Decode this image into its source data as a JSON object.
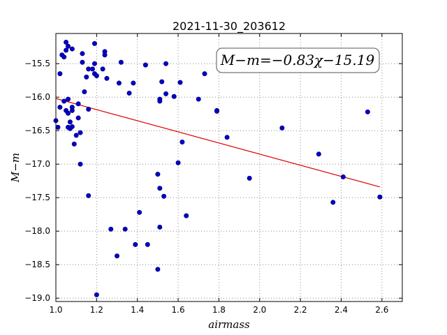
{
  "chart_data": {
    "type": "scatter",
    "title": "2021-11-30_203612",
    "xlabel": "airmass",
    "ylabel": "M−m",
    "xlim": [
      1.0,
      2.7
    ],
    "ylim": [
      -19.05,
      -15.05
    ],
    "x_ticks": [
      1.0,
      1.2,
      1.4,
      1.6,
      1.8,
      2.0,
      2.2,
      2.4,
      2.6
    ],
    "x_tick_labels": [
      "1.0",
      "1.2",
      "1.4",
      "1.6",
      "1.8",
      "2.0",
      "2.2",
      "2.4",
      "2.6"
    ],
    "y_ticks": [
      -15.5,
      -16.0,
      -16.5,
      -17.0,
      -17.5,
      -18.0,
      -18.5,
      -19.0
    ],
    "y_tick_labels": [
      "−15.5",
      "−16.0",
      "−16.5",
      "−17.0",
      "−17.5",
      "−18.0",
      "−18.5",
      "−19.0"
    ],
    "grid": true,
    "annotation": "M−m=−0.83χ−15.19",
    "annotation_position": "top-right",
    "marker_color": "#0000cc",
    "line_color": "#dd0000",
    "fit": {
      "slope": -0.83,
      "intercept": -15.19,
      "x_range": [
        1.0,
        2.59
      ]
    },
    "points": [
      [
        1.0,
        -16.35
      ],
      [
        1.01,
        -16.45
      ],
      [
        1.02,
        -15.65
      ],
      [
        1.02,
        -16.15
      ],
      [
        1.03,
        -15.37
      ],
      [
        1.04,
        -15.4
      ],
      [
        1.04,
        -16.06
      ],
      [
        1.05,
        -15.18
      ],
      [
        1.05,
        -15.3
      ],
      [
        1.05,
        -16.2
      ],
      [
        1.06,
        -15.24
      ],
      [
        1.06,
        -16.03
      ],
      [
        1.06,
        -16.24
      ],
      [
        1.06,
        -16.45
      ],
      [
        1.07,
        -16.37
      ],
      [
        1.07,
        -16.47
      ],
      [
        1.08,
        -15.28
      ],
      [
        1.08,
        -16.15
      ],
      [
        1.08,
        -16.2
      ],
      [
        1.08,
        -16.44
      ],
      [
        1.09,
        -16.7
      ],
      [
        1.1,
        -16.57
      ],
      [
        1.11,
        -16.31
      ],
      [
        1.11,
        -16.1
      ],
      [
        1.12,
        -16.53
      ],
      [
        1.12,
        -17.0
      ],
      [
        1.13,
        -15.35
      ],
      [
        1.13,
        -15.48
      ],
      [
        1.14,
        -15.92
      ],
      [
        1.15,
        -15.7
      ],
      [
        1.16,
        -15.58
      ],
      [
        1.16,
        -16.18
      ],
      [
        1.16,
        -17.47
      ],
      [
        1.18,
        -15.58
      ],
      [
        1.19,
        -15.5
      ],
      [
        1.19,
        -15.65
      ],
      [
        1.19,
        -15.2
      ],
      [
        1.2,
        -15.68
      ],
      [
        1.2,
        -18.95
      ],
      [
        1.23,
        -15.58
      ],
      [
        1.24,
        -15.32
      ],
      [
        1.24,
        -15.37
      ],
      [
        1.25,
        -15.72
      ],
      [
        1.27,
        -17.97
      ],
      [
        1.3,
        -18.37
      ],
      [
        1.31,
        -15.79
      ],
      [
        1.32,
        -15.48
      ],
      [
        1.34,
        -17.97
      ],
      [
        1.36,
        -15.94
      ],
      [
        1.38,
        -15.79
      ],
      [
        1.39,
        -18.2
      ],
      [
        1.41,
        -17.72
      ],
      [
        1.44,
        -15.52
      ],
      [
        1.45,
        -18.2
      ],
      [
        1.5,
        -17.15
      ],
      [
        1.5,
        -18.57
      ],
      [
        1.51,
        -17.36
      ],
      [
        1.51,
        -16.03
      ],
      [
        1.51,
        -16.06
      ],
      [
        1.51,
        -17.94
      ],
      [
        1.52,
        -15.77
      ],
      [
        1.53,
        -17.48
      ],
      [
        1.54,
        -15.95
      ],
      [
        1.54,
        -15.5
      ],
      [
        1.58,
        -15.99
      ],
      [
        1.6,
        -16.98
      ],
      [
        1.61,
        -15.78
      ],
      [
        1.62,
        -16.67
      ],
      [
        1.64,
        -17.77
      ],
      [
        1.7,
        -16.03
      ],
      [
        1.73,
        -15.65
      ],
      [
        1.79,
        -16.2
      ],
      [
        1.79,
        -16.21
      ],
      [
        1.84,
        -16.6
      ],
      [
        1.95,
        -17.21
      ],
      [
        2.11,
        -16.46
      ],
      [
        2.29,
        -16.85
      ],
      [
        2.36,
        -17.57
      ],
      [
        2.41,
        -17.19
      ],
      [
        2.53,
        -16.22
      ],
      [
        2.59,
        -17.49
      ]
    ]
  }
}
